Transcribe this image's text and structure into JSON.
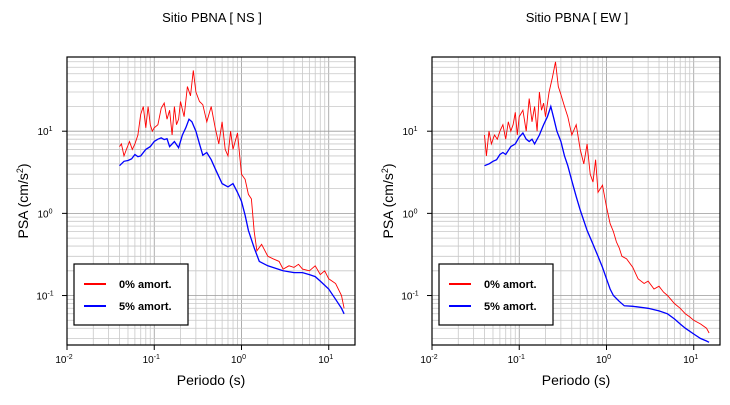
{
  "chart_data": [
    {
      "type": "line",
      "title": "Sitio PBNA [ NS ]",
      "xlabel": "Periodo (s)",
      "ylabel_main": "PSA (cm/s",
      "ylabel_sup": "2",
      "ylabel_close": ")",
      "x_scale": "log",
      "y_scale": "log",
      "xlim": [
        0.01,
        20
      ],
      "ylim": [
        0.025,
        80
      ],
      "grid": true,
      "legend_position": "bottom-left",
      "x_ticks": [
        {
          "value": 0.01,
          "base": "10",
          "exp": "-2"
        },
        {
          "value": 0.1,
          "base": "10",
          "exp": "-1"
        },
        {
          "value": 1,
          "base": "10",
          "exp": "0"
        },
        {
          "value": 10,
          "base": "10",
          "exp": "1"
        }
      ],
      "y_ticks": [
        {
          "value": 0.1,
          "base": "10",
          "exp": "-1"
        },
        {
          "value": 1,
          "base": "10",
          "exp": "0"
        },
        {
          "value": 10,
          "base": "10",
          "exp": "1"
        }
      ],
      "series": [
        {
          "name": "0% amort.",
          "color": "#ff0000",
          "x": [
            0.04,
            0.042,
            0.045,
            0.048,
            0.052,
            0.056,
            0.06,
            0.065,
            0.07,
            0.075,
            0.08,
            0.085,
            0.09,
            0.095,
            0.1,
            0.11,
            0.12,
            0.13,
            0.14,
            0.15,
            0.16,
            0.17,
            0.18,
            0.19,
            0.2,
            0.22,
            0.24,
            0.26,
            0.28,
            0.3,
            0.33,
            0.36,
            0.4,
            0.45,
            0.5,
            0.55,
            0.6,
            0.65,
            0.7,
            0.75,
            0.8,
            0.9,
            1.0,
            1.1,
            1.2,
            1.3,
            1.4,
            1.5,
            1.7,
            2.0,
            2.3,
            2.7,
            3.0,
            3.5,
            4.0,
            4.5,
            5.0,
            6.0,
            7.0,
            8.0,
            9.0,
            10.0,
            12.0,
            14.0,
            15.0
          ],
          "y": [
            6.5,
            7,
            5,
            6,
            7.5,
            6,
            7,
            9,
            16,
            20,
            11,
            20,
            12,
            10,
            11,
            12,
            19,
            22,
            14,
            18,
            9,
            20,
            12,
            14,
            23,
            15,
            35,
            27,
            55,
            30,
            23,
            21,
            13,
            20,
            11,
            7,
            13,
            6,
            5,
            10,
            6,
            9.5,
            3,
            2.6,
            1.7,
            1.5,
            0.6,
            0.35,
            0.42,
            0.3,
            0.28,
            0.26,
            0.21,
            0.23,
            0.22,
            0.24,
            0.21,
            0.2,
            0.23,
            0.18,
            0.2,
            0.16,
            0.14,
            0.1,
            0.07
          ]
        },
        {
          "name": "5% amort.",
          "color": "#0000ff",
          "x": [
            0.04,
            0.045,
            0.05,
            0.055,
            0.06,
            0.065,
            0.07,
            0.08,
            0.09,
            0.1,
            0.11,
            0.12,
            0.13,
            0.14,
            0.15,
            0.17,
            0.19,
            0.21,
            0.23,
            0.25,
            0.27,
            0.3,
            0.33,
            0.36,
            0.4,
            0.45,
            0.5,
            0.6,
            0.7,
            0.8,
            0.9,
            1.0,
            1.1,
            1.2,
            1.4,
            1.6,
            2.0,
            3.0,
            4.0,
            5.0,
            6.0,
            7.0,
            8.0,
            10.0,
            12.0,
            14.0,
            15.0
          ],
          "y": [
            3.8,
            4.3,
            4.4,
            4.6,
            5.2,
            4.9,
            5.0,
            6.0,
            6.5,
            7.5,
            8.0,
            8.3,
            7.9,
            8.1,
            6.5,
            7.5,
            6.3,
            9.0,
            11,
            14,
            13,
            10,
            7,
            5.1,
            5.5,
            4.5,
            3.5,
            2.3,
            2.1,
            2.3,
            1.8,
            1.4,
            0.95,
            0.62,
            0.38,
            0.26,
            0.23,
            0.2,
            0.19,
            0.19,
            0.18,
            0.17,
            0.15,
            0.12,
            0.09,
            0.07,
            0.06
          ]
        }
      ]
    },
    {
      "type": "line",
      "title": "Sitio PBNA [ EW ]",
      "xlabel": "Periodo (s)",
      "ylabel_main": "PSA (cm/s",
      "ylabel_sup": "2",
      "ylabel_close": ")",
      "x_scale": "log",
      "y_scale": "log",
      "xlim": [
        0.01,
        20
      ],
      "ylim": [
        0.025,
        80
      ],
      "grid": true,
      "legend_position": "bottom-left",
      "x_ticks": [
        {
          "value": 0.01,
          "base": "10",
          "exp": "-2"
        },
        {
          "value": 0.1,
          "base": "10",
          "exp": "-1"
        },
        {
          "value": 1,
          "base": "10",
          "exp": "0"
        },
        {
          "value": 10,
          "base": "10",
          "exp": "1"
        }
      ],
      "y_ticks": [
        {
          "value": 0.1,
          "base": "10",
          "exp": "-1"
        },
        {
          "value": 1,
          "base": "10",
          "exp": "0"
        },
        {
          "value": 10,
          "base": "10",
          "exp": "1"
        }
      ],
      "series": [
        {
          "name": "0% amort.",
          "color": "#ff0000",
          "x": [
            0.04,
            0.042,
            0.045,
            0.048,
            0.052,
            0.056,
            0.06,
            0.065,
            0.07,
            0.075,
            0.08,
            0.085,
            0.09,
            0.095,
            0.1,
            0.11,
            0.12,
            0.13,
            0.14,
            0.15,
            0.16,
            0.17,
            0.18,
            0.19,
            0.2,
            0.22,
            0.24,
            0.26,
            0.28,
            0.3,
            0.33,
            0.36,
            0.4,
            0.45,
            0.5,
            0.55,
            0.6,
            0.65,
            0.7,
            0.75,
            0.8,
            0.9,
            1.0,
            1.1,
            1.2,
            1.3,
            1.4,
            1.5,
            1.7,
            2.0,
            2.3,
            2.7,
            3.0,
            3.5,
            4.0,
            4.5,
            5.0,
            6.0,
            7.0,
            8.0,
            9.0,
            10.0,
            12.0,
            14.0,
            15.0
          ],
          "y": [
            9,
            5,
            10,
            7,
            9,
            8,
            10,
            12,
            8,
            13,
            10,
            12,
            17,
            9,
            15,
            18,
            10,
            25,
            13,
            20,
            10,
            30,
            18,
            22,
            15,
            30,
            45,
            70,
            35,
            28,
            20,
            15,
            9,
            12,
            6,
            4,
            7,
            3,
            2.4,
            4.5,
            1.8,
            2.2,
            1.2,
            0.75,
            0.6,
            0.45,
            0.38,
            0.3,
            0.28,
            0.22,
            0.16,
            0.14,
            0.15,
            0.12,
            0.13,
            0.11,
            0.1,
            0.08,
            0.07,
            0.06,
            0.055,
            0.05,
            0.045,
            0.04,
            0.035
          ]
        },
        {
          "name": "5% amort.",
          "color": "#0000ff",
          "x": [
            0.04,
            0.045,
            0.05,
            0.055,
            0.06,
            0.065,
            0.07,
            0.08,
            0.09,
            0.1,
            0.11,
            0.12,
            0.13,
            0.14,
            0.15,
            0.17,
            0.19,
            0.21,
            0.23,
            0.25,
            0.27,
            0.3,
            0.33,
            0.36,
            0.4,
            0.45,
            0.5,
            0.6,
            0.7,
            0.8,
            0.9,
            1.0,
            1.1,
            1.2,
            1.4,
            1.6,
            2.0,
            3.0,
            4.0,
            5.0,
            6.0,
            7.0,
            8.0,
            10.0,
            12.0,
            14.0,
            15.0
          ],
          "y": [
            3.8,
            4.0,
            4.3,
            4.5,
            5.2,
            5.5,
            5.2,
            6.5,
            7.0,
            8.5,
            9.5,
            8.0,
            7.5,
            8.0,
            7.0,
            9.0,
            12,
            15,
            20,
            14,
            10,
            7.5,
            5.0,
            3.8,
            2.5,
            1.6,
            1.1,
            0.62,
            0.42,
            0.3,
            0.22,
            0.16,
            0.12,
            0.1,
            0.085,
            0.075,
            0.074,
            0.07,
            0.065,
            0.06,
            0.052,
            0.045,
            0.04,
            0.034,
            0.03,
            0.028,
            0.027
          ]
        }
      ]
    }
  ]
}
